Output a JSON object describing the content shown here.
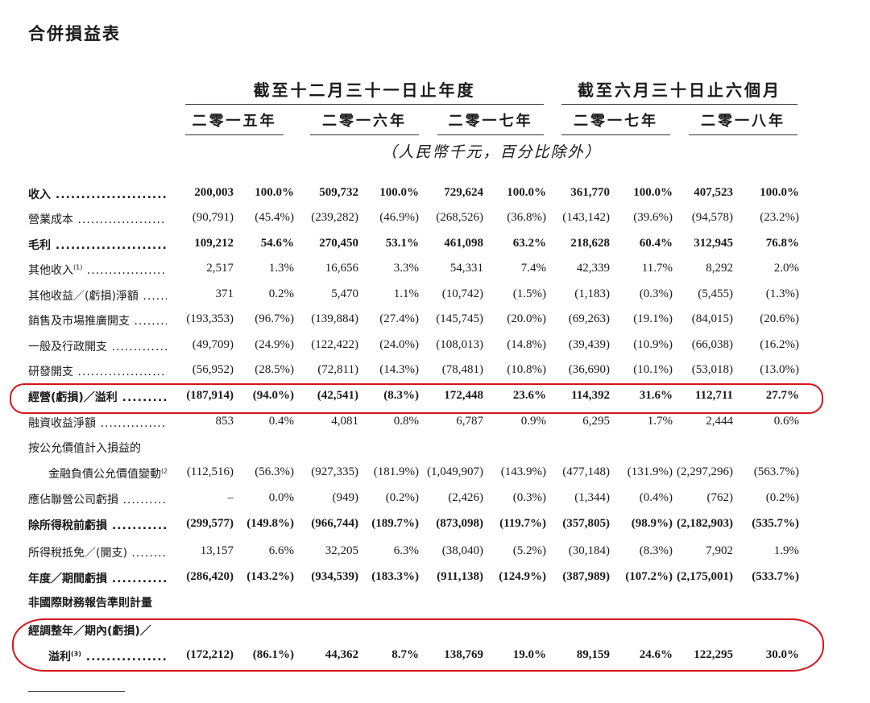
{
  "title": "合併損益表",
  "header": {
    "groups": [
      "截至十二月三十一日止年度",
      "截至六月三十日止六個月"
    ],
    "years": [
      "二零一五年",
      "二零一六年",
      "二零一七年",
      "二零一七年",
      "二零一八年"
    ],
    "unit": "（人民幣千元，百分比除外）"
  },
  "colors": {
    "highlight": "#d8141b"
  },
  "rows": [
    {
      "label": "收入",
      "bold": true,
      "values": [
        "200,003",
        "100.0%",
        "509,732",
        "100.0%",
        "729,624",
        "100.0%",
        "361,770",
        "100.0%",
        "407,523",
        "100.0%"
      ]
    },
    {
      "label": "營業成本",
      "values": [
        "(90,791)",
        "(45.4%)",
        "(239,282)",
        "(46.9%)",
        "(268,526)",
        "(36.8%)",
        "(143,142)",
        "(39.6%)",
        "(94,578)",
        "(23.2%)"
      ]
    },
    {
      "label": "毛利",
      "bold": true,
      "values": [
        "109,212",
        "54.6%",
        "270,450",
        "53.1%",
        "461,098",
        "63.2%",
        "218,628",
        "60.4%",
        "312,945",
        "76.8%"
      ]
    },
    {
      "label": "其他收入",
      "sup": "(1)",
      "values": [
        "2,517",
        "1.3%",
        "16,656",
        "3.3%",
        "54,331",
        "7.4%",
        "42,339",
        "11.7%",
        "8,292",
        "2.0%"
      ]
    },
    {
      "label": "其他收益／(虧損)淨額",
      "values": [
        "371",
        "0.2%",
        "5,470",
        "1.1%",
        "(10,742)",
        "(1.5%)",
        "(1,183)",
        "(0.3%)",
        "(5,455)",
        "(1.3%)"
      ]
    },
    {
      "label": "銷售及市場推廣開支",
      "values": [
        "(193,353)",
        "(96.7%)",
        "(139,884)",
        "(27.4%)",
        "(145,745)",
        "(20.0%)",
        "(69,263)",
        "(19.1%)",
        "(84,015)",
        "(20.6%)"
      ]
    },
    {
      "label": "一般及行政開支",
      "values": [
        "(49,709)",
        "(24.9%)",
        "(122,422)",
        "(24.0%)",
        "(108,013)",
        "(14.8%)",
        "(39,439)",
        "(10.9%)",
        "(66,038)",
        "(16.2%)"
      ]
    },
    {
      "label": "研發開支",
      "values": [
        "(56,952)",
        "(28.5%)",
        "(72,811)",
        "(14.3%)",
        "(78,481)",
        "(10.8%)",
        "(36,690)",
        "(10.1%)",
        "(53,018)",
        "(13.0%)"
      ]
    },
    {
      "label": "經營(虧損)／溢利",
      "bold": true,
      "values": [
        "(187,914)",
        "(94.0%)",
        "(42,541)",
        "(8.3%)",
        "172,448",
        "23.6%",
        "114,392",
        "31.6%",
        "112,711",
        "27.7%"
      ]
    },
    {
      "label": "融資收益淨額",
      "values": [
        "853",
        "0.4%",
        "4,081",
        "0.8%",
        "6,787",
        "0.9%",
        "6,295",
        "1.7%",
        "2,444",
        "0.6%"
      ]
    },
    {
      "label": "按公允價值計入損益的",
      "nodots": true,
      "values": []
    },
    {
      "label": "金融負債公允價值變動",
      "sup": "(2)",
      "indent": true,
      "values": [
        "(112,516)",
        "(56.3%)",
        "(927,335)",
        "(181.9%)",
        "(1,049,907)",
        "(143.9%)",
        "(477,148)",
        "(131.9%)",
        "(2,297,296)",
        "(563.7%)"
      ]
    },
    {
      "label": "應佔聯營公司虧損",
      "values": [
        "–",
        "0.0%",
        "(949)",
        "(0.2%)",
        "(2,426)",
        "(0.3%)",
        "(1,344)",
        "(0.4%)",
        "(762)",
        "(0.2%)"
      ]
    },
    {
      "label": "除所得稅前虧損",
      "bold": true,
      "values": [
        "(299,577)",
        "(149.8%)",
        "(966,744)",
        "(189.7%)",
        "(873,098)",
        "(119.7%)",
        "(357,805)",
        "(98.9%)",
        "(2,182,903)",
        "(535.7%)"
      ]
    },
    {
      "label": "所得稅抵免／(開支)",
      "values": [
        "13,157",
        "6.6%",
        "32,205",
        "6.3%",
        "(38,040)",
        "(5.2%)",
        "(30,184)",
        "(8.3%)",
        "7,902",
        "1.9%"
      ]
    },
    {
      "label": "年度／期間虧損",
      "bold": true,
      "values": [
        "(286,420)",
        "(143.2%)",
        "(934,539)",
        "(183.3%)",
        "(911,138)",
        "(124.9%)",
        "(387,989)",
        "(107.2%)",
        "(2,175,001)",
        "(533.7%)"
      ]
    },
    {
      "label": "非國際財務報告準則計量",
      "bold": true,
      "nodots": true,
      "values": []
    },
    {
      "label": "經調整年／期內(虧損)／",
      "bold": true,
      "nodots": true,
      "values": []
    },
    {
      "label": "溢利",
      "sup": "(3)",
      "bold": true,
      "indent": true,
      "values": [
        "(172,212)",
        "(86.1%)",
        "44,362",
        "8.7%",
        "138,769",
        "19.0%",
        "89,159",
        "24.6%",
        "122,295",
        "30.0%"
      ]
    }
  ]
}
